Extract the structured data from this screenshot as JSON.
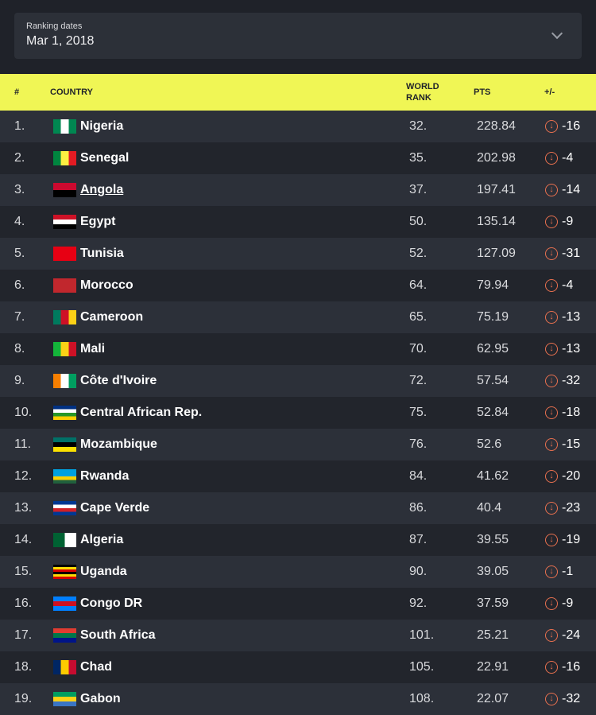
{
  "ranking_dates": {
    "label": "Ranking dates",
    "value": "Mar 1, 2018"
  },
  "header": {
    "rank": "#",
    "country": "COUNTRY",
    "world_rank_1": "WORLD",
    "world_rank_2": "RANK",
    "pts": "PTS",
    "change": "+/-"
  },
  "colors": {
    "header_bg": "#f0f655",
    "down_arrow": "#e8704f"
  },
  "rows": [
    {
      "n": "1.",
      "country": "Nigeria",
      "world": "32.",
      "pts": "228.84",
      "change": "-16",
      "flag": [
        "#008751",
        "#fff",
        "#008751"
      ],
      "dir": "v"
    },
    {
      "n": "2.",
      "country": "Senegal",
      "world": "35.",
      "pts": "202.98",
      "change": "-4",
      "flag": [
        "#00853f",
        "#fdef42",
        "#e31b23"
      ],
      "dir": "v"
    },
    {
      "n": "3.",
      "country": "Angola",
      "world": "37.",
      "pts": "197.41",
      "change": "-14",
      "flag": [
        "#cc092f",
        "#000"
      ],
      "dir": "h",
      "link": true
    },
    {
      "n": "4.",
      "country": "Egypt",
      "world": "50.",
      "pts": "135.14",
      "change": "-9",
      "flag": [
        "#ce1126",
        "#fff",
        "#000"
      ],
      "dir": "h"
    },
    {
      "n": "5.",
      "country": "Tunisia",
      "world": "52.",
      "pts": "127.09",
      "change": "-31",
      "flag": [
        "#e70013"
      ],
      "dir": "h"
    },
    {
      "n": "6.",
      "country": "Morocco",
      "world": "64.",
      "pts": "79.94",
      "change": "-4",
      "flag": [
        "#c1272d"
      ],
      "dir": "h"
    },
    {
      "n": "7.",
      "country": "Cameroon",
      "world": "65.",
      "pts": "75.19",
      "change": "-13",
      "flag": [
        "#007a5e",
        "#ce1126",
        "#fcd116"
      ],
      "dir": "v"
    },
    {
      "n": "8.",
      "country": "Mali",
      "world": "70.",
      "pts": "62.95",
      "change": "-13",
      "flag": [
        "#14b53a",
        "#fcd116",
        "#ce1126"
      ],
      "dir": "v"
    },
    {
      "n": "9.",
      "country": "Côte d'Ivoire",
      "world": "72.",
      "pts": "57.54",
      "change": "-32",
      "flag": [
        "#f77f00",
        "#fff",
        "#009e60"
      ],
      "dir": "v"
    },
    {
      "n": "10.",
      "country": "Central African Rep.",
      "world": "75.",
      "pts": "52.84",
      "change": "-18",
      "flag": [
        "#003082",
        "#fff",
        "#289728",
        "#ffce00"
      ],
      "dir": "h"
    },
    {
      "n": "11.",
      "country": "Mozambique",
      "world": "76.",
      "pts": "52.6",
      "change": "-15",
      "flag": [
        "#007168",
        "#000",
        "#fce100"
      ],
      "dir": "h"
    },
    {
      "n": "12.",
      "country": "Rwanda",
      "world": "84.",
      "pts": "41.62",
      "change": "-20",
      "flag": [
        "#00a1de",
        "#00a1de",
        "#fad201",
        "#20603d"
      ],
      "dir": "h"
    },
    {
      "n": "13.",
      "country": "Cape Verde",
      "world": "86.",
      "pts": "40.4",
      "change": "-23",
      "flag": [
        "#003893",
        "#fff",
        "#cf2027",
        "#003893"
      ],
      "dir": "h"
    },
    {
      "n": "14.",
      "country": "Algeria",
      "world": "87.",
      "pts": "39.55",
      "change": "-19",
      "flag": [
        "#006233",
        "#fff"
      ],
      "dir": "v"
    },
    {
      "n": "15.",
      "country": "Uganda",
      "world": "90.",
      "pts": "39.05",
      "change": "-1",
      "flag": [
        "#000",
        "#fcdc04",
        "#d90000",
        "#000",
        "#fcdc04",
        "#d90000"
      ],
      "dir": "h"
    },
    {
      "n": "16.",
      "country": "Congo DR",
      "world": "92.",
      "pts": "37.59",
      "change": "-9",
      "flag": [
        "#007fff",
        "#ce1021",
        "#007fff"
      ],
      "dir": "h"
    },
    {
      "n": "17.",
      "country": "South Africa",
      "world": "101.",
      "pts": "25.21",
      "change": "-24",
      "flag": [
        "#e03c31",
        "#007749",
        "#001489"
      ],
      "dir": "h"
    },
    {
      "n": "18.",
      "country": "Chad",
      "world": "105.",
      "pts": "22.91",
      "change": "-16",
      "flag": [
        "#002664",
        "#fecb00",
        "#c60c30"
      ],
      "dir": "v"
    },
    {
      "n": "19.",
      "country": "Gabon",
      "world": "108.",
      "pts": "22.07",
      "change": "-32",
      "flag": [
        "#009e60",
        "#fcd116",
        "#3a75c4"
      ],
      "dir": "h"
    }
  ]
}
